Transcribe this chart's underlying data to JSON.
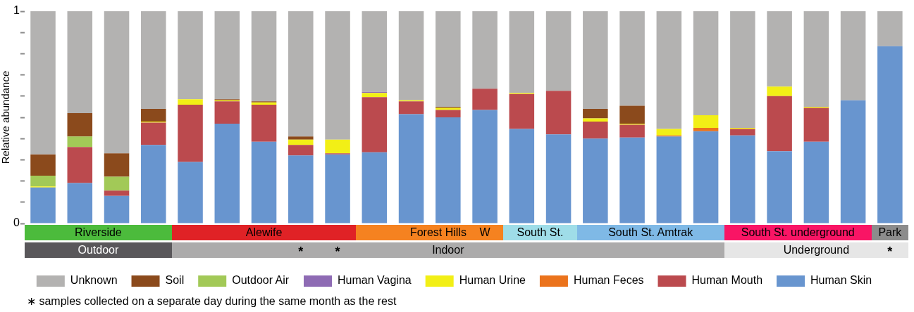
{
  "chart_data": {
    "type": "bar",
    "stacked": true,
    "ylabel": "Relative abundance",
    "categories": [
      null,
      null,
      null,
      null,
      null,
      null,
      null,
      null,
      null,
      null,
      null,
      null,
      null,
      null,
      null,
      null,
      null,
      null,
      null,
      null,
      null,
      null,
      null,
      null
    ],
    "series": [
      {
        "name": "Human Skin",
        "color": "#6895cf",
        "values": [
          0.17,
          0.19,
          0.13,
          0.37,
          0.29,
          0.47,
          0.385,
          0.32,
          0.325,
          0.335,
          0.515,
          0.5,
          0.535,
          0.445,
          0.42,
          0.4,
          0.405,
          0.41,
          0.435,
          0.415,
          0.34,
          0.385,
          0.58,
          0.835
        ]
      },
      {
        "name": "Human Mouth",
        "color": "#bb4a4e",
        "values": [
          0,
          0.17,
          0.025,
          0.105,
          0.27,
          0.105,
          0.175,
          0.05,
          0.005,
          0.26,
          0.06,
          0.035,
          0.1,
          0.165,
          0.205,
          0.08,
          0.06,
          0,
          0,
          0.03,
          0.26,
          0.16,
          0,
          0
        ]
      },
      {
        "name": "Human Feces",
        "color": "#eb731c",
        "values": [
          0,
          0,
          0,
          0,
          0,
          0,
          0,
          0,
          0,
          0,
          0,
          0,
          0,
          0,
          0,
          0,
          0,
          0.005,
          0.015,
          0,
          0,
          0,
          0,
          0
        ]
      },
      {
        "name": "Human Urine",
        "color": "#f2ef16",
        "values": [
          0.005,
          0,
          0,
          0.005,
          0.025,
          0.005,
          0.01,
          0.025,
          0.065,
          0.02,
          0.005,
          0.01,
          0,
          0.005,
          0,
          0.015,
          0.005,
          0.03,
          0.06,
          0.005,
          0.045,
          0.005,
          0,
          0
        ]
      },
      {
        "name": "Human Vagina",
        "color": "#8e6bb4",
        "values": [
          0,
          0,
          0,
          0,
          0,
          0,
          0,
          0,
          0,
          0.005,
          0,
          0,
          0,
          0,
          0,
          0,
          0,
          0,
          0,
          0,
          0,
          0,
          0,
          0
        ]
      },
      {
        "name": "Outdoor Air",
        "color": "#a2c957",
        "values": [
          0.05,
          0.05,
          0.065,
          0,
          0,
          0,
          0,
          0,
          0,
          0,
          0,
          0,
          0,
          0,
          0,
          0,
          0,
          0,
          0,
          0,
          0,
          0,
          0,
          0
        ]
      },
      {
        "name": "Soil",
        "color": "#8b4a1c",
        "values": [
          0.1,
          0.11,
          0.11,
          0.06,
          0,
          0.005,
          0.005,
          0.015,
          0,
          0,
          0,
          0.005,
          0,
          0,
          0,
          0.045,
          0.085,
          0,
          0,
          0,
          0,
          0,
          0,
          0
        ]
      },
      {
        "name": "Unknown",
        "color": "#b3b2b1",
        "values": [
          0.675,
          0.48,
          0.67,
          0.46,
          0.415,
          0.415,
          0.425,
          0.59,
          0.605,
          0.38,
          0.42,
          0.45,
          0.365,
          0.385,
          0.375,
          0.46,
          0.445,
          0.555,
          0.49,
          0.55,
          0.355,
          0.45,
          0.42,
          0.165
        ]
      }
    ],
    "ylim": [
      0,
      1
    ],
    "yticks": [
      0,
      {
        "value": 0.1,
        "label": null
      },
      {
        "value": 0.2,
        "label": null
      },
      {
        "value": 0.3,
        "label": null
      },
      {
        "value": 0.4,
        "label": null
      },
      {
        "value": 0.5,
        "label": null
      },
      {
        "value": 0.6,
        "label": null
      },
      {
        "value": 0.7,
        "label": null
      },
      {
        "value": 0.8,
        "label": null
      },
      {
        "value": 0.9,
        "label": null
      },
      1
    ],
    "grid": false,
    "legend": "bottom",
    "annotations": [
      "Riverside",
      "Alewife",
      "Forest Hills",
      "W",
      "South St.",
      "South St. Amtrak",
      "South St. underground",
      "Park",
      "Outdoor",
      "Indoor",
      "Underground",
      "*",
      "*",
      "*",
      "∗ samples collected on a separate day during the same month as the rest"
    ]
  }
}
